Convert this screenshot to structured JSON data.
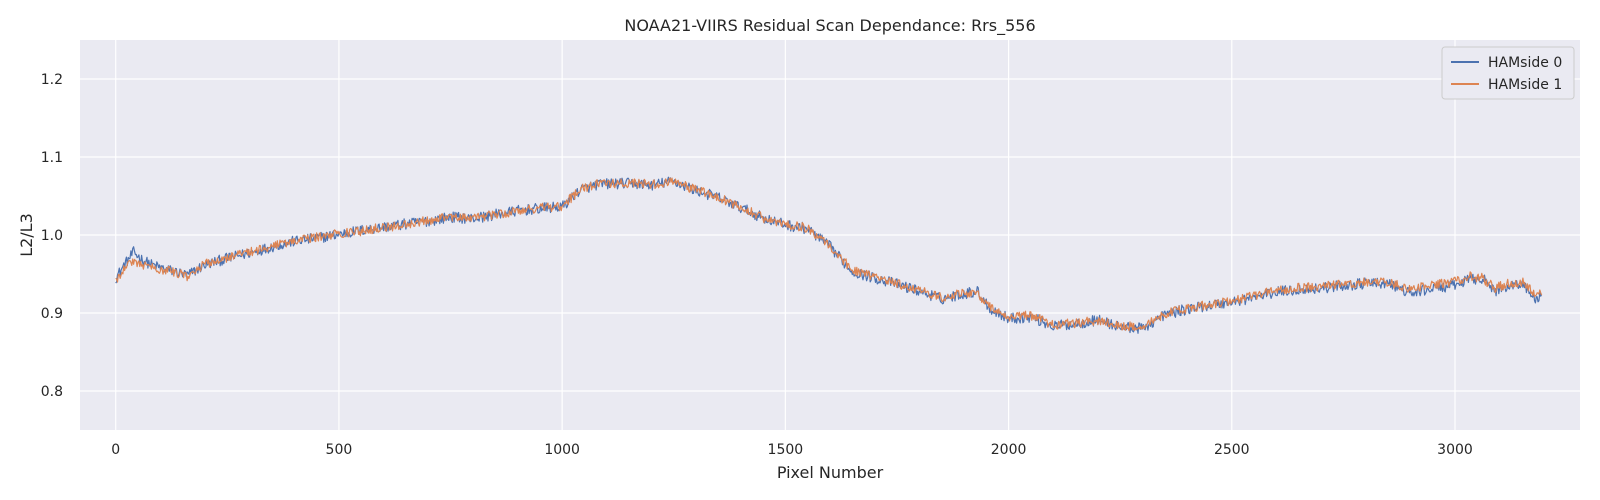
{
  "chart_data": {
    "type": "line",
    "title": "NOAA21-VIIRS Residual Scan Dependance: Rrs_556",
    "xlabel": "Pixel Number",
    "ylabel": "L2/L3",
    "xlim": [
      -80,
      3280
    ],
    "ylim": [
      0.75,
      1.25
    ],
    "x_ticks": [
      0,
      500,
      1000,
      1500,
      2000,
      2500,
      3000
    ],
    "y_ticks": [
      0.8,
      0.9,
      1.0,
      1.1,
      1.2
    ],
    "x_tick_labels": [
      "0",
      "500",
      "1000",
      "1500",
      "2000",
      "2500",
      "3000"
    ],
    "y_tick_labels": [
      "0.8",
      "0.9",
      "1.0",
      "1.1",
      "1.2"
    ],
    "grid": true,
    "legend_position": "top-right",
    "background": "#eaeaf2",
    "series": [
      {
        "name": "HAMside 0",
        "color": "#4c72b0",
        "x": [
          0,
          20,
          40,
          60,
          80,
          100,
          120,
          140,
          160,
          180,
          200,
          250,
          300,
          350,
          400,
          450,
          500,
          550,
          600,
          650,
          700,
          750,
          800,
          850,
          900,
          950,
          1000,
          1040,
          1080,
          1120,
          1160,
          1200,
          1250,
          1300,
          1350,
          1400,
          1450,
          1500,
          1550,
          1600,
          1650,
          1700,
          1750,
          1800,
          1850,
          1900,
          1930,
          1960,
          2000,
          2050,
          2100,
          2150,
          2200,
          2250,
          2300,
          2350,
          2400,
          2450,
          2500,
          2550,
          2600,
          2650,
          2700,
          2750,
          2800,
          2850,
          2900,
          2950,
          3000,
          3030,
          3060,
          3090,
          3120,
          3150,
          3180,
          3195
        ],
        "values": [
          0.945,
          0.962,
          0.978,
          0.968,
          0.962,
          0.958,
          0.955,
          0.952,
          0.948,
          0.955,
          0.962,
          0.97,
          0.977,
          0.985,
          0.992,
          0.996,
          1.001,
          1.006,
          1.01,
          1.014,
          1.018,
          1.023,
          1.021,
          1.026,
          1.031,
          1.034,
          1.036,
          1.058,
          1.065,
          1.066,
          1.066,
          1.064,
          1.069,
          1.057,
          1.048,
          1.035,
          1.022,
          1.013,
          1.008,
          0.985,
          0.953,
          0.945,
          0.937,
          0.928,
          0.918,
          0.925,
          0.928,
          0.905,
          0.893,
          0.895,
          0.883,
          0.886,
          0.891,
          0.882,
          0.88,
          0.898,
          0.905,
          0.91,
          0.914,
          0.92,
          0.927,
          0.93,
          0.932,
          0.935,
          0.938,
          0.938,
          0.925,
          0.932,
          0.935,
          0.943,
          0.945,
          0.928,
          0.935,
          0.938,
          0.918,
          0.922
        ],
        "noise": 0.007
      },
      {
        "name": "HAMside 1",
        "color": "#dd8452",
        "x": [
          0,
          20,
          40,
          60,
          80,
          100,
          120,
          140,
          160,
          180,
          200,
          250,
          300,
          350,
          400,
          450,
          500,
          550,
          600,
          650,
          700,
          750,
          800,
          850,
          900,
          950,
          1000,
          1040,
          1080,
          1120,
          1160,
          1200,
          1250,
          1300,
          1350,
          1400,
          1450,
          1500,
          1550,
          1600,
          1650,
          1700,
          1750,
          1800,
          1850,
          1900,
          1930,
          1960,
          2000,
          2050,
          2100,
          2150,
          2200,
          2250,
          2300,
          2350,
          2400,
          2450,
          2500,
          2550,
          2600,
          2650,
          2700,
          2750,
          2800,
          2850,
          2900,
          2950,
          3000,
          3030,
          3060,
          3090,
          3120,
          3150,
          3180,
          3195
        ],
        "values": [
          0.94,
          0.96,
          0.966,
          0.962,
          0.96,
          0.956,
          0.954,
          0.951,
          0.946,
          0.954,
          0.963,
          0.971,
          0.978,
          0.986,
          0.992,
          0.997,
          1.002,
          1.005,
          1.01,
          1.013,
          1.019,
          1.023,
          1.022,
          1.026,
          1.031,
          1.035,
          1.037,
          1.058,
          1.066,
          1.066,
          1.066,
          1.065,
          1.068,
          1.058,
          1.048,
          1.036,
          1.022,
          1.014,
          1.009,
          0.987,
          0.955,
          0.946,
          0.938,
          0.93,
          0.92,
          0.926,
          0.926,
          0.906,
          0.895,
          0.897,
          0.885,
          0.887,
          0.89,
          0.884,
          0.882,
          0.899,
          0.906,
          0.911,
          0.916,
          0.922,
          0.929,
          0.932,
          0.934,
          0.937,
          0.94,
          0.94,
          0.93,
          0.936,
          0.94,
          0.947,
          0.945,
          0.932,
          0.938,
          0.94,
          0.925,
          0.928
        ],
        "noise": 0.006
      }
    ]
  }
}
